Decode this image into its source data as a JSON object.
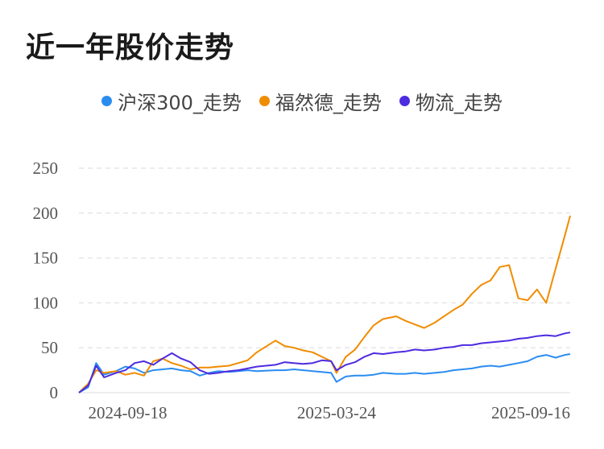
{
  "title": "近一年股价走势",
  "colors": {
    "series0": "#2b8cf0",
    "series1": "#f08c00",
    "series2": "#4d2be0",
    "grid": "#e6e6e6"
  },
  "chart_data": {
    "type": "line",
    "title": "近一年股价走势",
    "legend_position": "top-center",
    "grid": true,
    "ylim": [
      0,
      250
    ],
    "yticks": [
      "0",
      "50",
      "100",
      "150",
      "200",
      "250"
    ],
    "xticks": [
      "2024-09-18",
      "2025-03-24",
      "2025-09-16"
    ],
    "x": [
      "2024-09-11",
      "2024-09-18",
      "2024-09-24",
      "2024-09-30",
      "2024-10-09",
      "2024-10-16",
      "2024-10-23",
      "2024-10-30",
      "2024-11-06",
      "2024-11-13",
      "2024-11-20",
      "2024-11-27",
      "2024-12-04",
      "2024-12-11",
      "2024-12-18",
      "2024-12-25",
      "2025-01-02",
      "2025-01-09",
      "2025-01-16",
      "2025-01-23",
      "2025-02-06",
      "2025-02-13",
      "2025-02-20",
      "2025-02-27",
      "2025-03-06",
      "2025-03-13",
      "2025-03-20",
      "2025-03-24",
      "2025-03-31",
      "2025-04-07",
      "2025-04-14",
      "2025-04-21",
      "2025-04-28",
      "2025-05-08",
      "2025-05-15",
      "2025-05-22",
      "2025-05-29",
      "2025-06-06",
      "2025-06-13",
      "2025-06-20",
      "2025-06-27",
      "2025-07-04",
      "2025-07-11",
      "2025-07-18",
      "2025-07-25",
      "2025-08-01",
      "2025-08-08",
      "2025-08-15",
      "2025-08-22",
      "2025-08-29",
      "2025-09-05",
      "2025-09-12",
      "2025-09-16"
    ],
    "series": [
      {
        "name": "沪深300_走势",
        "color": "#2b8cf0",
        "values": [
          0,
          6,
          33,
          20,
          24,
          29,
          27,
          22,
          25,
          26,
          27,
          25,
          24,
          19,
          22,
          24,
          23,
          24,
          25,
          24,
          25,
          25,
          26,
          25,
          24,
          23,
          22,
          12,
          18,
          19,
          19,
          20,
          22,
          21,
          21,
          22,
          21,
          22,
          23,
          25,
          26,
          27,
          29,
          30,
          29,
          31,
          33,
          35,
          40,
          42,
          39,
          42,
          43
        ]
      },
      {
        "name": "福然德_走势",
        "color": "#f08c00",
        "values": [
          0,
          10,
          25,
          22,
          24,
          20,
          22,
          19,
          35,
          38,
          33,
          30,
          26,
          28,
          28,
          29,
          30,
          33,
          36,
          45,
          58,
          52,
          50,
          47,
          45,
          40,
          35,
          22,
          40,
          48,
          62,
          75,
          82,
          85,
          80,
          76,
          72,
          78,
          85,
          92,
          98,
          110,
          120,
          125,
          140,
          142,
          105,
          103,
          115,
          100,
          138,
          175,
          197
        ]
      },
      {
        "name": "物流_走势",
        "color": "#4d2be0",
        "values": [
          0,
          8,
          30,
          17,
          22,
          25,
          33,
          35,
          31,
          38,
          44,
          38,
          34,
          25,
          21,
          22,
          24,
          25,
          27,
          29,
          31,
          34,
          33,
          32,
          33,
          36,
          35,
          25,
          31,
          34,
          40,
          44,
          43,
          45,
          46,
          48,
          47,
          48,
          50,
          51,
          53,
          53,
          55,
          56,
          57,
          58,
          60,
          61,
          63,
          64,
          63,
          66,
          67
        ]
      }
    ]
  }
}
